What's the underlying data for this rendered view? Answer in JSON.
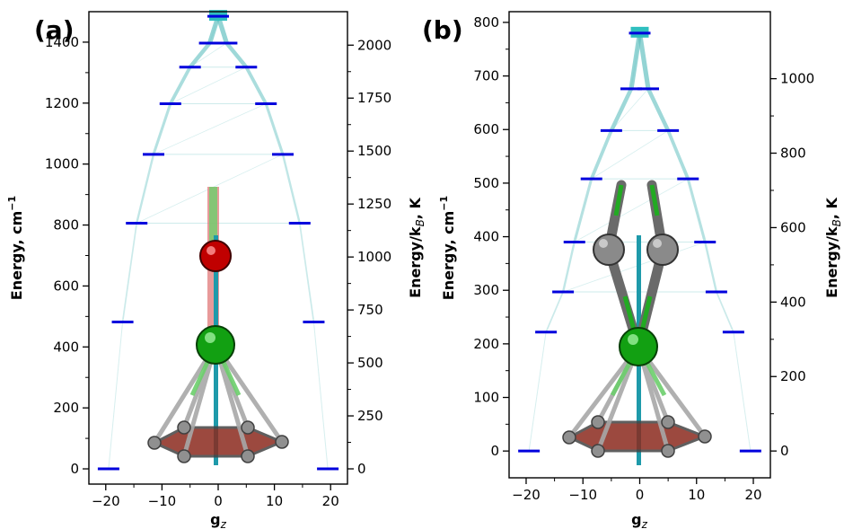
{
  "chart_data": [
    {
      "type": "scatter",
      "panel_label": "(a)",
      "xlabel": "g",
      "xlabel_sub": "z",
      "ylabel": "Energy, cm",
      "ylabel_sup": "−1",
      "y2label": "Energy/k",
      "y2label_sub": "B",
      "y2label_tail": ", K",
      "xlim": [
        -23,
        23
      ],
      "ylim": [
        -50,
        1500
      ],
      "y2lim": [
        -72,
        2158
      ],
      "xticks": [
        -20,
        -10,
        0,
        10,
        20
      ],
      "xtick_labels": [
        "−20",
        "−10",
        "0",
        "10",
        "20"
      ],
      "yticks": [
        0,
        200,
        400,
        600,
        800,
        1000,
        1200,
        1400
      ],
      "y2ticks": [
        0,
        250,
        500,
        750,
        1000,
        1250,
        1500,
        1750,
        2000
      ],
      "levels": [
        {
          "energy": 0,
          "gz": [
            -19.5,
            19.5
          ]
        },
        {
          "energy": 482,
          "gz": [
            -17,
            17
          ]
        },
        {
          "energy": 806,
          "gz": [
            -14.5,
            14.5
          ]
        },
        {
          "energy": 1032,
          "gz": [
            -11.5,
            11.5
          ]
        },
        {
          "energy": 1198,
          "gz": [
            -8.5,
            8.5
          ]
        },
        {
          "energy": 1318,
          "gz": [
            -5,
            5
          ]
        },
        {
          "energy": 1397,
          "gz": [
            -1.5,
            1.5
          ]
        },
        {
          "energy": 1485,
          "gz": [
            0
          ]
        }
      ],
      "colors": {
        "level": "#0000dd",
        "transition": "#5fbfbf"
      }
    },
    {
      "type": "scatter",
      "panel_label": "(b)",
      "xlabel": "g",
      "xlabel_sub": "z",
      "ylabel": "Energy, cm",
      "ylabel_sup": "−1",
      "y2label": "Energy/k",
      "y2label_sub": "B",
      "y2label_tail": ", K",
      "xlim": [
        -23,
        23
      ],
      "ylim": [
        -50,
        820
      ],
      "y2lim": [
        -72,
        1180
      ],
      "xticks": [
        -20,
        -10,
        0,
        10,
        20
      ],
      "xtick_labels": [
        "−20",
        "−10",
        "0",
        "10",
        "20"
      ],
      "yticks": [
        0,
        100,
        200,
        300,
        400,
        500,
        600,
        700,
        800
      ],
      "y2ticks": [
        0,
        200,
        400,
        600,
        800,
        1000
      ],
      "levels": [
        {
          "energy": 0,
          "gz": [
            -19.5,
            19.5
          ]
        },
        {
          "energy": 222,
          "gz": [
            -16.5,
            16.5
          ]
        },
        {
          "energy": 297,
          "gz": [
            -13.5,
            13.5
          ]
        },
        {
          "energy": 390,
          "gz": [
            -11.5,
            11.5
          ]
        },
        {
          "energy": 508,
          "gz": [
            -8.5,
            8.5
          ]
        },
        {
          "energy": 598,
          "gz": [
            -5,
            5
          ]
        },
        {
          "energy": 676,
          "gz": [
            -1.5,
            1.5
          ]
        },
        {
          "energy": 780,
          "gz": [
            0
          ]
        }
      ],
      "colors": {
        "level": "#0000dd",
        "transition": "#5fbfbf"
      }
    }
  ]
}
